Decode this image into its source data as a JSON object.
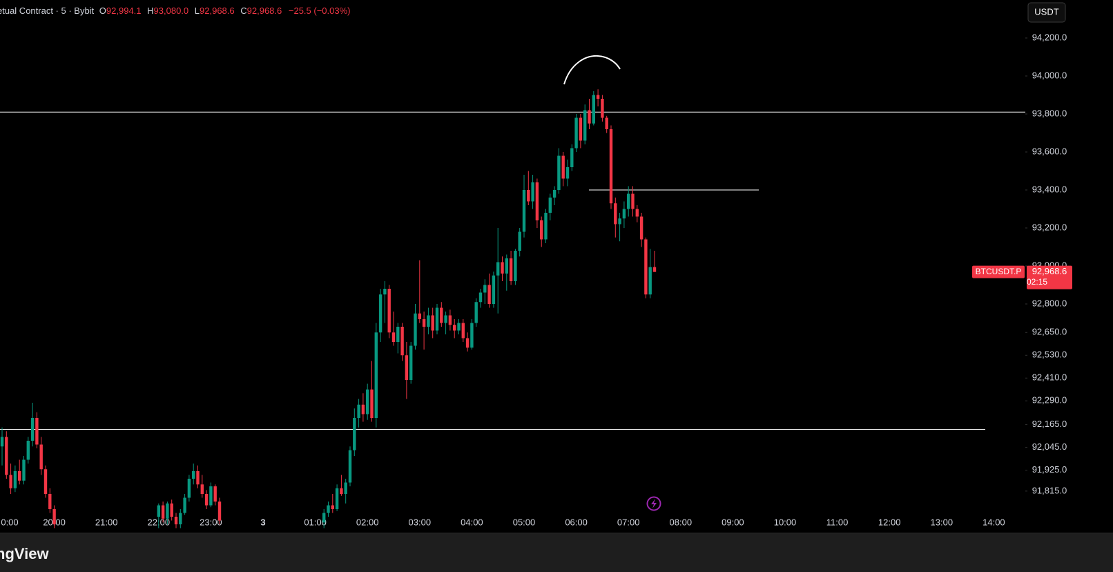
{
  "chart_data": {
    "type": "candlestick",
    "header": {
      "symbol": "etual Contract · 5 · Bybit",
      "o_key": "O",
      "o": "92,994.1",
      "h_key": "H",
      "h": "93,080.0",
      "l_key": "L",
      "l": "92,968.6",
      "c_key": "C",
      "c": "92,968.6",
      "change": "−25.5 (−0.03%)"
    },
    "currency_button": "USDT",
    "price_tag": {
      "symbol": "BTCUSDT.P",
      "price": "92,968.6",
      "countdown": "02:15"
    },
    "brand": "ngView",
    "up_color": "#089981",
    "down_color": "#f23645",
    "grid": false,
    "ylim": [
      91600,
      94400
    ],
    "yticks": [
      {
        "value": 94200,
        "label": "94,200.0"
      },
      {
        "value": 94000,
        "label": "94,000.0"
      },
      {
        "value": 93800,
        "label": "93,800.0"
      },
      {
        "value": 93600,
        "label": "93,600.0"
      },
      {
        "value": 93400,
        "label": "93,400.0"
      },
      {
        "value": 93200,
        "label": "93,200.0"
      },
      {
        "value": 93000,
        "label": "93,000.0"
      },
      {
        "value": 92800,
        "label": "92,800.0"
      },
      {
        "value": 92650,
        "label": "92,650.0"
      },
      {
        "value": 92530,
        "label": "92,530.0"
      },
      {
        "value": 92410,
        "label": "92,410.0"
      },
      {
        "value": 92290,
        "label": "92,290.0"
      },
      {
        "value": 92165,
        "label": "92,165.0"
      },
      {
        "value": 92045,
        "label": "92,045.0"
      },
      {
        "value": 91925,
        "label": "91,925.0"
      },
      {
        "value": 91815,
        "label": "91,815.0"
      }
    ],
    "horizontal_lines": [
      93810,
      93400,
      92140
    ],
    "categories": [
      "0:00",
      null,
      null,
      null,
      null,
      null,
      null,
      null,
      null,
      null,
      null,
      null,
      "20:00",
      null,
      null,
      null,
      null,
      null,
      null,
      null,
      null,
      null,
      null,
      null,
      "21:00",
      null,
      null,
      null,
      null,
      null,
      null,
      null,
      null,
      null,
      null,
      null,
      "22:00",
      null,
      null,
      null,
      null,
      null,
      null,
      null,
      null,
      null,
      null,
      null,
      "23:00",
      null,
      null,
      null,
      null,
      null,
      null,
      null,
      null,
      null,
      null,
      null,
      "3",
      null,
      null,
      null,
      null,
      null,
      null,
      null,
      null,
      null,
      null,
      null,
      "01:00",
      null,
      null,
      null,
      null,
      null,
      null,
      null,
      null,
      null,
      null,
      null,
      "02:00",
      null,
      null,
      null,
      null,
      null,
      null,
      null,
      null,
      null,
      null,
      null,
      "03:00",
      null,
      null,
      null,
      null,
      null,
      null,
      null,
      null,
      null,
      null,
      null,
      "04:00",
      null,
      null,
      null,
      null,
      null,
      null,
      null,
      null,
      null,
      null,
      null,
      "05:00",
      null,
      null,
      null,
      null,
      null,
      null,
      null,
      null,
      null,
      null,
      null,
      "06:00",
      null,
      null,
      null,
      null,
      null,
      null,
      null,
      null,
      null,
      null,
      null,
      "07:00",
      null,
      null,
      null,
      null,
      null,
      null,
      null,
      null,
      null,
      null,
      null,
      "08:00",
      null,
      null,
      null,
      null,
      null,
      null,
      null,
      null,
      null,
      null,
      null,
      "09:00",
      null,
      null,
      null,
      null,
      null,
      null,
      null,
      null,
      null,
      null,
      null,
      "10:00",
      null,
      null,
      null,
      null,
      null,
      null,
      null,
      null,
      null,
      null,
      null,
      "11:00",
      null,
      null,
      null,
      null,
      null,
      null,
      null,
      null,
      null,
      null,
      null,
      "12:00",
      null,
      null,
      null,
      null,
      null,
      null,
      null,
      null,
      null,
      null,
      null,
      "13:00",
      null,
      null,
      null,
      null,
      null,
      null,
      null,
      null,
      null,
      null,
      null,
      "14:00"
    ],
    "open": [
      92050,
      92100,
      91900,
      91830,
      91920,
      91870,
      91980,
      92080,
      92200,
      92060,
      91930,
      91800,
      91720,
      null,
      null,
      null,
      null,
      null,
      null,
      null,
      null,
      null,
      null,
      null,
      null,
      null,
      null,
      null,
      null,
      null,
      null,
      null,
      null,
      null,
      null,
      null,
      91680,
      91740,
      91670,
      91750,
      91680,
      91640,
      91700,
      91780,
      91880,
      91920,
      91850,
      91800,
      91740,
      91840,
      91760,
      null,
      null,
      null,
      null,
      null,
      null,
      null,
      null,
      null,
      null,
      null,
      null,
      null,
      null,
      null,
      null,
      null,
      null,
      null,
      null,
      null,
      null,
      null,
      91650,
      91700,
      91740,
      91720,
      91830,
      91800,
      91860,
      92030,
      92200,
      92270,
      92220,
      92350,
      92200,
      92650,
      92850,
      92880,
      92650,
      92600,
      92680,
      92530,
      92400,
      92580,
      92750,
      92720,
      92680,
      92740,
      92660,
      92780,
      92700,
      92740,
      92690,
      92660,
      92700,
      92620,
      92570,
      92700,
      92810,
      92860,
      92900,
      92800,
      92950,
      93020,
      92960,
      93040,
      92920,
      93080,
      93180,
      93400,
      93340,
      93440,
      93240,
      93140,
      93280,
      93360,
      93400,
      93580,
      93460,
      93520,
      93620,
      93780,
      93660,
      93820,
      93750,
      93900,
      93880,
      93780,
      93720,
      93330,
      93220,
      93250,
      93300,
      93380,
      93300,
      93260,
      93140,
      92850,
      92994.1,
      null,
      null,
      null,
      null,
      null,
      null,
      null,
      null,
      null,
      null,
      null,
      null,
      null,
      null,
      null,
      null,
      null,
      null,
      null,
      null,
      null,
      null,
      null,
      null,
      null,
      null,
      null,
      null,
      null,
      null,
      null,
      null,
      null,
      null,
      null,
      null,
      null,
      null,
      null,
      null,
      null,
      null,
      null,
      null,
      null,
      null,
      null,
      null,
      null,
      null,
      null,
      null,
      null,
      null,
      null,
      null,
      null,
      null,
      null,
      null,
      null,
      null,
      null,
      null,
      null,
      null,
      null,
      null,
      null,
      null,
      null,
      null,
      null,
      null,
      null,
      null,
      null,
      null
    ],
    "high": [
      92150,
      92130,
      91960,
      91950,
      91980,
      92000,
      92100,
      92280,
      92230,
      92100,
      91950,
      91830,
      91740,
      null,
      null,
      null,
      null,
      null,
      null,
      null,
      null,
      null,
      null,
      null,
      null,
      null,
      null,
      null,
      null,
      null,
      null,
      null,
      null,
      null,
      null,
      null,
      91750,
      91760,
      91760,
      91770,
      91700,
      91720,
      91800,
      91900,
      91960,
      91950,
      91900,
      91820,
      91860,
      91850,
      91780,
      null,
      null,
      null,
      null,
      null,
      null,
      null,
      null,
      null,
      null,
      null,
      null,
      null,
      null,
      null,
      null,
      null,
      null,
      null,
      null,
      null,
      null,
      null,
      91720,
      91760,
      91800,
      91850,
      91900,
      91880,
      92050,
      92250,
      92300,
      92330,
      92380,
      92500,
      92700,
      92880,
      92920,
      92900,
      92760,
      92700,
      92700,
      92600,
      92600,
      92800,
      93030,
      92760,
      92780,
      92780,
      92800,
      92810,
      92760,
      92770,
      92720,
      92720,
      92720,
      92650,
      92720,
      92830,
      92880,
      92930,
      92960,
      92970,
      93200,
      93050,
      93060,
      93080,
      93090,
      93200,
      93480,
      93500,
      93480,
      93460,
      93260,
      93300,
      93380,
      93420,
      93620,
      93600,
      93560,
      93640,
      93800,
      93800,
      93850,
      93880,
      93920,
      93930,
      93900,
      93790,
      93740,
      93360,
      93280,
      93340,
      93420,
      93420,
      93320,
      93280,
      93150,
      93090,
      93080,
      null,
      null,
      null,
      null,
      null,
      null,
      null,
      null,
      null,
      null,
      null,
      null,
      null,
      null,
      null,
      null,
      null,
      null,
      null,
      null,
      null,
      null,
      null,
      null,
      null,
      null,
      null,
      null,
      null,
      null,
      null,
      null,
      null,
      null,
      null,
      null,
      null,
      null,
      null,
      null,
      null,
      null,
      null,
      null,
      null,
      null,
      null,
      null,
      null,
      null,
      null,
      null,
      null,
      null,
      null,
      null,
      null,
      null,
      null,
      null,
      null,
      null,
      null,
      null,
      null,
      null,
      null,
      null,
      null,
      null,
      null,
      null,
      null,
      null,
      null,
      null,
      null,
      null
    ],
    "low": [
      91950,
      91880,
      91800,
      91810,
      91850,
      91850,
      91960,
      92050,
      92040,
      91900,
      91780,
      91700,
      91620,
      null,
      null,
      null,
      null,
      null,
      null,
      null,
      null,
      null,
      null,
      null,
      null,
      null,
      null,
      null,
      null,
      null,
      null,
      null,
      null,
      null,
      null,
      null,
      91620,
      91650,
      91640,
      91660,
      91620,
      91620,
      91690,
      91760,
      91850,
      91830,
      91780,
      91720,
      91730,
      91740,
      91640,
      null,
      null,
      null,
      null,
      null,
      null,
      null,
      null,
      null,
      null,
      null,
      null,
      null,
      null,
      null,
      null,
      null,
      null,
      null,
      null,
      null,
      null,
      null,
      91620,
      91680,
      91700,
      91710,
      91790,
      91750,
      91840,
      92000,
      92150,
      92180,
      92190,
      92180,
      92150,
      92600,
      92700,
      92620,
      92580,
      92540,
      92500,
      92300,
      92380,
      92560,
      92700,
      92560,
      92640,
      92620,
      92640,
      92680,
      92640,
      92660,
      92620,
      92640,
      92600,
      92550,
      92560,
      92680,
      92780,
      92800,
      92780,
      92780,
      92750,
      92920,
      92870,
      92900,
      92900,
      93050,
      93150,
      93320,
      93300,
      93200,
      93100,
      93120,
      93240,
      93320,
      93380,
      93420,
      93420,
      93500,
      93600,
      93620,
      93640,
      93720,
      93740,
      93840,
      93760,
      93700,
      93300,
      93150,
      93130,
      93200,
      93260,
      93260,
      93230,
      93100,
      92830,
      92830,
      92968.6,
      null,
      null,
      null,
      null,
      null,
      null,
      null,
      null,
      null,
      null,
      null,
      null,
      null,
      null,
      null,
      null,
      null,
      null,
      null,
      null,
      null,
      null,
      null,
      null,
      null,
      null,
      null,
      null,
      null,
      null,
      null,
      null,
      null,
      null,
      null,
      null,
      null,
      null,
      null,
      null,
      null,
      null,
      null,
      null,
      null,
      null,
      null,
      null,
      null,
      null,
      null,
      null,
      null,
      null,
      null,
      null,
      null,
      null,
      null,
      null,
      null,
      null,
      null,
      null,
      null,
      null,
      null,
      null,
      null,
      null,
      null,
      null,
      null,
      null,
      null,
      null,
      null,
      null
    ],
    "close": [
      92100,
      91900,
      91830,
      91920,
      91870,
      91980,
      92080,
      92200,
      92060,
      91930,
      91800,
      91720,
      91640,
      null,
      null,
      null,
      null,
      null,
      null,
      null,
      null,
      null,
      null,
      null,
      null,
      null,
      null,
      null,
      null,
      null,
      null,
      null,
      null,
      null,
      null,
      null,
      91740,
      91670,
      91750,
      91680,
      91640,
      91700,
      91780,
      91880,
      91920,
      91850,
      91800,
      91740,
      91840,
      91760,
      91660,
      null,
      null,
      null,
      null,
      null,
      null,
      null,
      null,
      null,
      null,
      null,
      null,
      null,
      null,
      null,
      null,
      null,
      null,
      null,
      null,
      null,
      null,
      null,
      91700,
      91740,
      91720,
      91830,
      91800,
      91860,
      92030,
      92200,
      92270,
      92220,
      92350,
      92200,
      92650,
      92850,
      92880,
      92650,
      92600,
      92680,
      92530,
      92400,
      92580,
      92750,
      92720,
      92680,
      92740,
      92660,
      92780,
      92700,
      92740,
      92690,
      92660,
      92700,
      92620,
      92570,
      92700,
      92810,
      92860,
      92900,
      92800,
      92950,
      93020,
      92960,
      93040,
      92920,
      93080,
      93180,
      93400,
      93340,
      93440,
      93240,
      93140,
      93280,
      93360,
      93400,
      93580,
      93460,
      93520,
      93620,
      93780,
      93660,
      93820,
      93750,
      93900,
      93880,
      93780,
      93720,
      93330,
      93220,
      93250,
      93300,
      93380,
      93300,
      93260,
      93140,
      92850,
      92994,
      92968.6,
      null,
      null,
      null,
      null,
      null,
      null,
      null,
      null,
      null,
      null,
      null,
      null,
      null,
      null,
      null,
      null,
      null,
      null,
      null,
      null,
      null,
      null,
      null,
      null,
      null,
      null,
      null,
      null,
      null,
      null,
      null,
      null,
      null,
      null,
      null,
      null,
      null,
      null,
      null,
      null,
      null,
      null,
      null,
      null,
      null,
      null,
      null,
      null,
      null,
      null,
      null,
      null,
      null,
      null,
      null,
      null,
      null,
      null,
      null,
      null,
      null,
      null,
      null,
      null,
      null,
      null,
      null,
      null,
      null,
      null,
      null,
      null,
      null,
      null,
      null,
      null,
      null,
      null
    ]
  }
}
